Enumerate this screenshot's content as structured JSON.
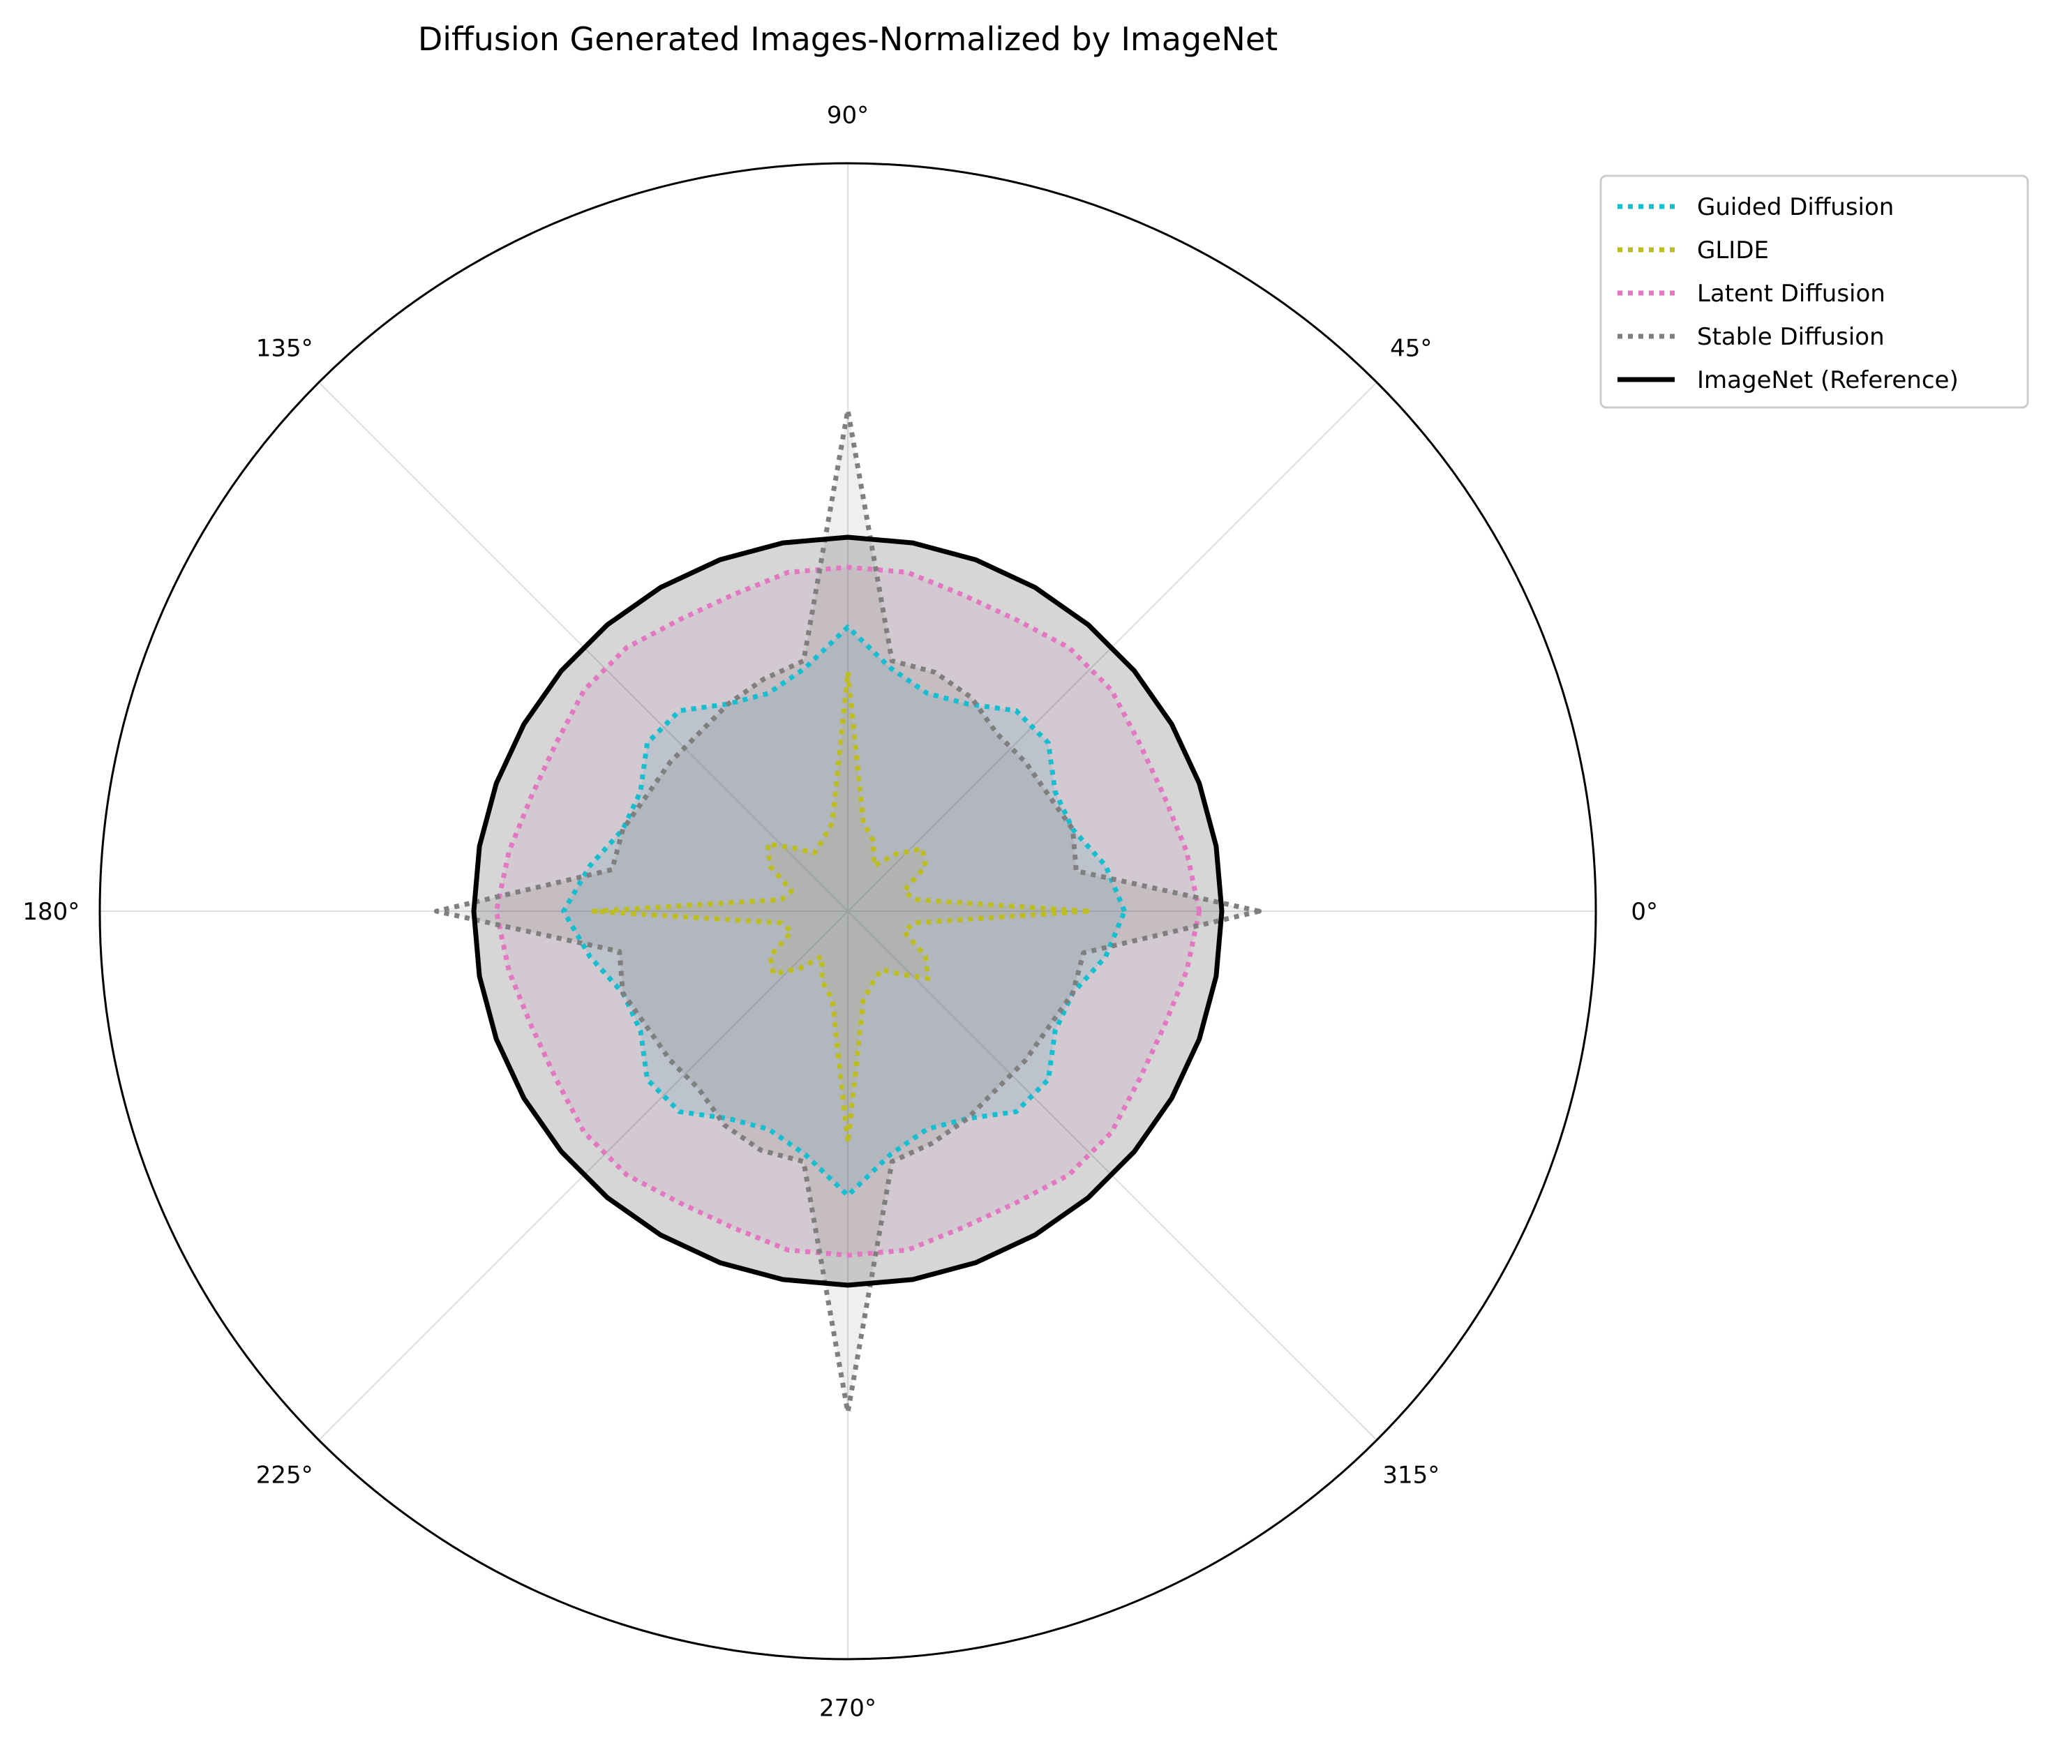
{
  "chart_data": {
    "type": "polar-line",
    "title": "Diffusion Generated Images-Normalized by ImageNet",
    "theta_unit": "degrees",
    "angular_ticks": [
      "0°",
      "45°",
      "90°",
      "135°",
      "180°",
      "225°",
      "270°",
      "315°"
    ],
    "radial_range": [
      0,
      1.0
    ],
    "grid": true,
    "radial_tick_labels_visible": false,
    "legend_position": "upper-right outside",
    "theta": [
      0,
      10,
      20,
      30,
      40,
      50,
      60,
      70,
      80,
      90,
      100,
      110,
      120,
      130,
      140,
      150,
      160,
      170,
      180,
      190,
      200,
      210,
      220,
      230,
      240,
      250,
      260,
      270,
      280,
      290,
      300,
      310,
      320,
      330,
      340,
      350
    ],
    "series": [
      {
        "name": "Guided Diffusion",
        "color": "#17becf",
        "style": "dotted",
        "filled": true,
        "r": [
          0.37,
          0.35,
          0.32,
          0.32,
          0.35,
          0.35,
          0.32,
          0.31,
          0.33,
          0.38,
          0.33,
          0.31,
          0.32,
          0.35,
          0.35,
          0.32,
          0.32,
          0.35,
          0.38,
          0.35,
          0.32,
          0.32,
          0.35,
          0.35,
          0.32,
          0.31,
          0.33,
          0.38,
          0.33,
          0.31,
          0.32,
          0.35,
          0.35,
          0.32,
          0.32,
          0.35
        ]
      },
      {
        "name": "GLIDE",
        "color": "#bcbd22",
        "style": "dotted",
        "filled": true,
        "r": [
          0.32,
          0.09,
          0.08,
          0.12,
          0.13,
          0.1,
          0.07,
          0.1,
          0.12,
          0.32,
          0.12,
          0.1,
          0.09,
          0.11,
          0.14,
          0.12,
          0.08,
          0.09,
          0.34,
          0.09,
          0.08,
          0.12,
          0.13,
          0.1,
          0.07,
          0.1,
          0.12,
          0.31,
          0.12,
          0.1,
          0.09,
          0.11,
          0.14,
          0.12,
          0.08,
          0.09
        ]
      },
      {
        "name": "Latent Diffusion",
        "color": "#e377c2",
        "style": "dotted",
        "filled": true,
        "r": [
          0.47,
          0.46,
          0.45,
          0.45,
          0.46,
          0.46,
          0.45,
          0.45,
          0.46,
          0.46,
          0.46,
          0.45,
          0.45,
          0.46,
          0.46,
          0.45,
          0.45,
          0.46,
          0.47,
          0.46,
          0.45,
          0.45,
          0.46,
          0.46,
          0.45,
          0.45,
          0.46,
          0.46,
          0.46,
          0.45,
          0.45,
          0.46,
          0.46,
          0.45,
          0.45,
          0.46
        ]
      },
      {
        "name": "Stable Diffusion",
        "color": "#7f7f7f",
        "style": "dotted",
        "filled": true,
        "r": [
          0.55,
          0.31,
          0.32,
          0.31,
          0.31,
          0.31,
          0.33,
          0.34,
          0.34,
          0.67,
          0.34,
          0.33,
          0.32,
          0.31,
          0.31,
          0.31,
          0.32,
          0.32,
          0.55,
          0.31,
          0.32,
          0.31,
          0.31,
          0.31,
          0.33,
          0.34,
          0.34,
          0.67,
          0.34,
          0.33,
          0.32,
          0.31,
          0.31,
          0.31,
          0.32,
          0.32
        ]
      },
      {
        "name": "ImageNet (Reference)",
        "color": "#000000",
        "style": "solid",
        "filled": true,
        "r": [
          0.5,
          0.5,
          0.5,
          0.5,
          0.5,
          0.5,
          0.5,
          0.5,
          0.5,
          0.5,
          0.5,
          0.5,
          0.5,
          0.5,
          0.5,
          0.5,
          0.5,
          0.5,
          0.5,
          0.5,
          0.5,
          0.5,
          0.5,
          0.5,
          0.5,
          0.5,
          0.5,
          0.5,
          0.5,
          0.5,
          0.5,
          0.5,
          0.5,
          0.5,
          0.5,
          0.5
        ]
      }
    ]
  }
}
